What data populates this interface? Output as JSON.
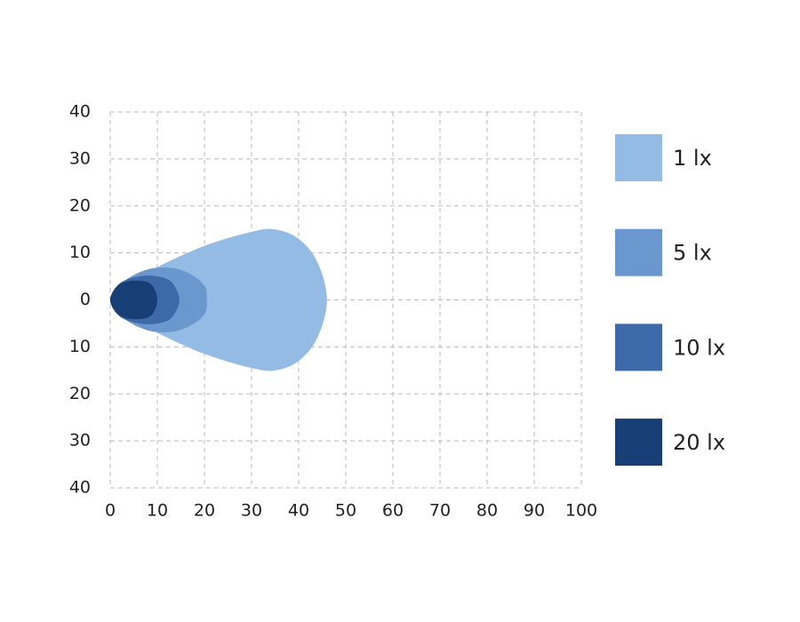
{
  "chart_data": {
    "type": "contour",
    "series": [
      {
        "name": "1 lx",
        "color": "#93bbe3",
        "x": [
          0,
          5,
          10,
          20,
          30,
          35,
          40,
          44,
          46,
          44,
          40,
          35,
          30,
          20,
          10,
          5
        ],
        "values": [
          0,
          4,
          7,
          11.5,
          14.5,
          15,
          13,
          8,
          0,
          -8,
          -13,
          -15,
          -14.5,
          -11.5,
          -7,
          -4
        ]
      },
      {
        "name": "5 lx",
        "color": "#6a97cd",
        "x": [
          0,
          3,
          8,
          13,
          17,
          20,
          20.5,
          20,
          17,
          13,
          8,
          3
        ],
        "values": [
          0,
          4,
          6.5,
          6.8,
          5.5,
          3,
          0,
          -3,
          -5.5,
          -6.8,
          -6.5,
          -4
        ]
      },
      {
        "name": "10 lx",
        "color": "#3e69a8",
        "x": [
          0,
          2,
          6,
          10,
          13,
          14.7,
          13,
          10,
          6,
          2
        ],
        "values": [
          0,
          3.5,
          5,
          5,
          3.8,
          0,
          -3.8,
          -5,
          -5,
          -3.5
        ]
      },
      {
        "name": "20 lx",
        "color": "#173f75",
        "x": [
          0,
          1.5,
          4,
          7,
          9,
          10,
          9,
          7,
          4,
          1.5
        ],
        "values": [
          0,
          3,
          4,
          4,
          3,
          0,
          -3,
          -4,
          -4,
          -3
        ]
      }
    ],
    "xlim": [
      0,
      100
    ],
    "xticks": [
      0,
      10,
      20,
      30,
      40,
      50,
      60,
      70,
      80,
      90,
      100
    ],
    "ylim": [
      -40,
      40
    ],
    "yticks": [
      {
        "value": -40,
        "label": "40"
      },
      {
        "value": -30,
        "label": "30"
      },
      {
        "value": -20,
        "label": "20"
      },
      {
        "value": -10,
        "label": "10"
      },
      0,
      10,
      20,
      30,
      40
    ],
    "grid": true,
    "legend": "right"
  }
}
